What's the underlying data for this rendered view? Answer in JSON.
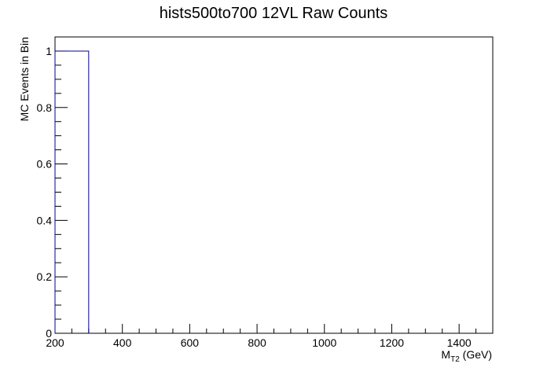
{
  "chart_data": {
    "type": "bar",
    "title": "hists500to700 12VL Raw Counts",
    "xlabel": {
      "main": "M",
      "sub": "T2",
      "suffix": " (GeV)"
    },
    "ylabel": "MC Events in Bin",
    "xlim": [
      200,
      1500
    ],
    "ylim": [
      0,
      1.05
    ],
    "x_ticks": [
      200,
      400,
      600,
      800,
      1000,
      1200,
      1400
    ],
    "x_tick_labels": [
      "200",
      "400",
      "600",
      "800",
      "1000",
      "1200",
      "1400"
    ],
    "y_ticks": [
      0,
      0.2,
      0.4,
      0.6,
      0.8,
      1
    ],
    "y_tick_labels": [
      "0",
      "0.2",
      "0.4",
      "0.6",
      "0.8",
      "1"
    ],
    "bins": [
      {
        "x_low": 200,
        "x_high": 300,
        "value": 1
      }
    ],
    "line_color": "#000099"
  }
}
